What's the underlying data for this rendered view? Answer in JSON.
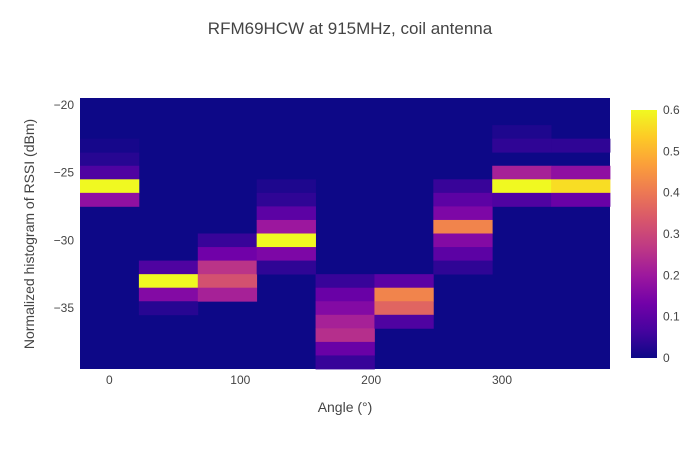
{
  "chart_data": {
    "type": "heatmap",
    "title": "RFM69HCW at 915MHz, coil antenna",
    "xlabel": "Angle (°)",
    "ylabel": "Normalized histogram of RSSI (dBm)",
    "x_ticks": [
      0,
      100,
      200,
      300
    ],
    "y_ticks": [
      -20,
      -25,
      -30,
      -35
    ],
    "xlim": [
      -22.5,
      382.5
    ],
    "ylim": [
      -39.5,
      -19.5
    ],
    "colorscale": "Plasma",
    "colorbar": {
      "range": [
        0,
        0.6
      ],
      "ticks": [
        0,
        0.1,
        0.2,
        0.3,
        0.4,
        0.5,
        0.6
      ]
    },
    "columns": [
      {
        "angle": 0,
        "bins": [
          [
            -24,
            0.03
          ],
          [
            -25,
            0.08
          ],
          [
            -26,
            0.6
          ],
          [
            -27,
            0.18
          ],
          [
            -23,
            0.01
          ]
        ]
      },
      {
        "angle": 45,
        "bins": [
          [
            -32,
            0.08
          ],
          [
            -33,
            0.6
          ],
          [
            -34,
            0.16
          ],
          [
            -35,
            0.03
          ]
        ]
      },
      {
        "angle": 90,
        "bins": [
          [
            -30,
            0.05
          ],
          [
            -31,
            0.13
          ],
          [
            -32,
            0.26
          ],
          [
            -33,
            0.32
          ],
          [
            -34,
            0.22
          ]
        ]
      },
      {
        "angle": 135,
        "bins": [
          [
            -26,
            0.02
          ],
          [
            -27,
            0.04
          ],
          [
            -28,
            0.1
          ],
          [
            -29,
            0.2
          ],
          [
            -30,
            0.6
          ],
          [
            -31,
            0.15
          ],
          [
            -32,
            0.04
          ]
        ]
      },
      {
        "angle": 180,
        "bins": [
          [
            -33,
            0.05
          ],
          [
            -34,
            0.12
          ],
          [
            -35,
            0.16
          ],
          [
            -36,
            0.22
          ],
          [
            -37,
            0.25
          ],
          [
            -38,
            0.12
          ],
          [
            -39,
            0.05
          ]
        ]
      },
      {
        "angle": 225,
        "bins": [
          [
            -33,
            0.1
          ],
          [
            -34,
            0.42
          ],
          [
            -35,
            0.36
          ],
          [
            -36,
            0.08
          ]
        ]
      },
      {
        "angle": 270,
        "bins": [
          [
            -26,
            0.05
          ],
          [
            -27,
            0.1
          ],
          [
            -28,
            0.15
          ],
          [
            -29,
            0.42
          ],
          [
            -30,
            0.16
          ],
          [
            -31,
            0.1
          ],
          [
            -32,
            0.04
          ]
        ]
      },
      {
        "angle": 315,
        "bins": [
          [
            -22,
            0.02
          ],
          [
            -23,
            0.04
          ],
          [
            -25,
            0.22
          ],
          [
            -26,
            0.6
          ],
          [
            -27,
            0.08
          ]
        ]
      },
      {
        "angle": 360,
        "bins": [
          [
            -23,
            0.04
          ],
          [
            -25,
            0.18
          ],
          [
            -26,
            0.56
          ],
          [
            -27,
            0.12
          ]
        ]
      }
    ]
  }
}
